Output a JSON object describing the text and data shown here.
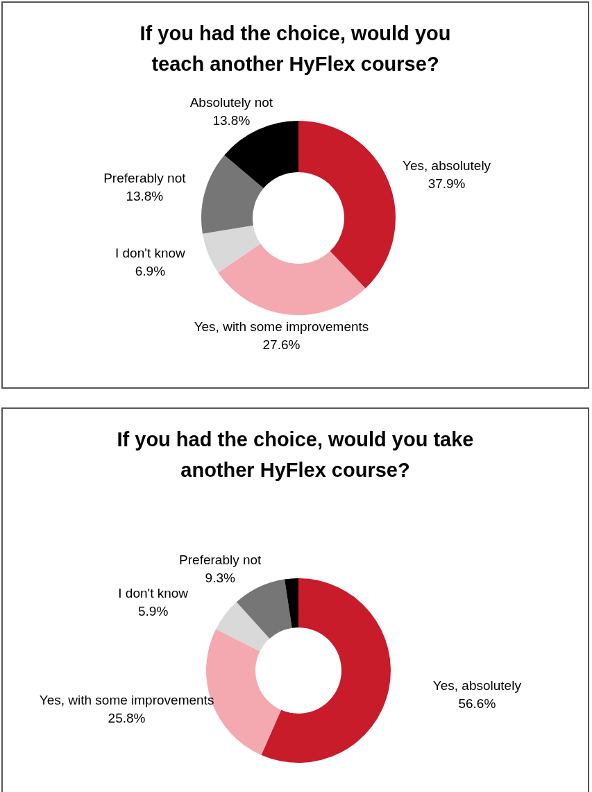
{
  "chart_data": [
    {
      "type": "donut",
      "title": "If you had the choice, would you teach another HyFlex course?",
      "categories": [
        "Yes, absolutely",
        "Yes, with some improvements",
        "I don't know",
        "Preferably not",
        "Absolutely not"
      ],
      "values": [
        37.9,
        27.6,
        6.9,
        13.8,
        13.8
      ],
      "colors": [
        "#c91c2b",
        "#f4a9b0",
        "#d9d9d9",
        "#767676",
        "#000000"
      ],
      "value_labels": [
        "37.9%",
        "27.6%",
        "6.9%",
        "13.8%",
        "13.8%"
      ]
    },
    {
      "type": "donut",
      "title": "If you had the choice, would you take another HyFlex course?",
      "categories": [
        "Yes, absolutely",
        "Yes, with some improvements",
        "I don't know",
        "Preferably not",
        null
      ],
      "values": [
        56.6,
        25.8,
        5.9,
        9.3,
        2.4
      ],
      "colors": [
        "#c91c2b",
        "#f4a9b0",
        "#d9d9d9",
        "#767676",
        "#000000"
      ],
      "value_labels": [
        "56.6%",
        "25.8%",
        "5.9%",
        "9.3%",
        null
      ]
    }
  ]
}
